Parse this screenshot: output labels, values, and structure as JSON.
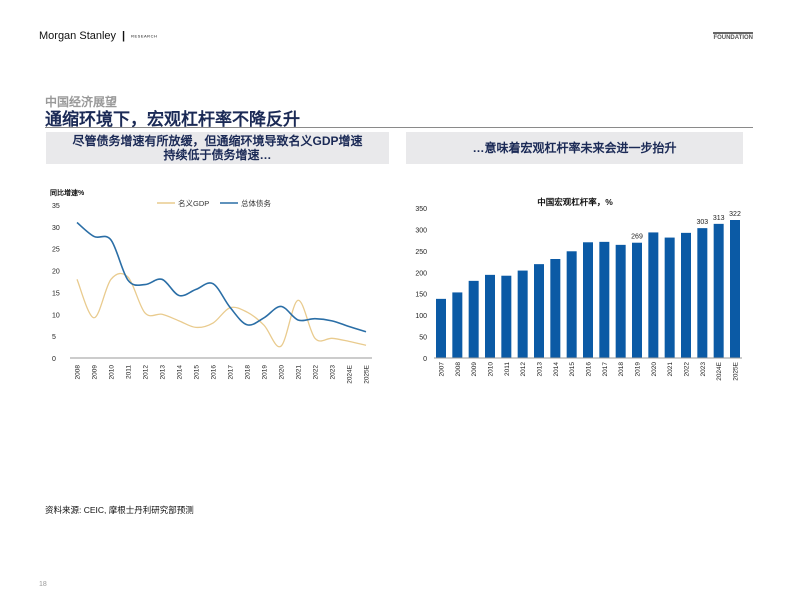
{
  "header": {
    "brand": "Morgan Stanley",
    "separator": "|",
    "brand_sub": "RESEARCH",
    "badge": "FOUNDATION"
  },
  "section_label": "中国经济展望",
  "title": "通缩环境下，宏观杠杆率不降反升",
  "callouts": [
    "尽管债务增速有所放缓，但通缩环境导致名义GDP增速持续低于债务增速…",
    "…意味着宏观杠杆率未来会进一步抬升"
  ],
  "source": "资料来源: CEIC, 摩根士丹利研究部预测",
  "page_number": "18",
  "colors": {
    "gdp": "#e9cb8e",
    "debt": "#2a6ea6",
    "bars": "#0b5aa5",
    "title": "#1b2a56"
  },
  "chart_data": [
    {
      "type": "line",
      "ylabel": "同比增速%",
      "ylim": [
        0,
        35
      ],
      "yticks": [
        0,
        5,
        10,
        15,
        20,
        25,
        30,
        35
      ],
      "legend_placement": "top-center",
      "grid": false,
      "categories": [
        "2008",
        "2009",
        "2010",
        "2011",
        "2012",
        "2013",
        "2014",
        "2015",
        "2016",
        "2017",
        "2018",
        "2019",
        "2020",
        "2021",
        "2022",
        "2023",
        "2024E",
        "2025E"
      ],
      "series": [
        {
          "name": "名义GDP",
          "color": "#e9cb8e",
          "values": [
            18,
            9.2,
            18,
            18.5,
            10.3,
            10,
            8.5,
            7,
            8,
            11.5,
            10.5,
            7.5,
            2.7,
            13.2,
            4.5,
            4.5,
            3.8,
            2.9
          ]
        },
        {
          "name": "总体债务",
          "color": "#2a6ea6",
          "values": [
            31,
            27.8,
            27,
            17.8,
            16.8,
            18,
            14.3,
            15.7,
            17,
            11.6,
            7.6,
            9.2,
            11.8,
            8.7,
            9,
            8.5,
            7.2,
            6
          ]
        }
      ]
    },
    {
      "type": "bar",
      "title": "中国宏观杠杆率，%",
      "ylim": [
        0,
        350
      ],
      "yticks": [
        0,
        50,
        100,
        150,
        200,
        250,
        300,
        350
      ],
      "grid": false,
      "categories": [
        "2007",
        "2008",
        "2009",
        "2010",
        "2011",
        "2012",
        "2013",
        "2014",
        "2015",
        "2016",
        "2017",
        "2018",
        "2019",
        "2020",
        "2021",
        "2022",
        "2023",
        "2024E",
        "2025E"
      ],
      "values": [
        138,
        153,
        180,
        194,
        192,
        204,
        219,
        231,
        249,
        270,
        271,
        264,
        269,
        293,
        281,
        292,
        303,
        313,
        322
      ],
      "data_labels": {
        "2019": "269",
        "2023": "303",
        "2024E": "313",
        "2025E": "322"
      }
    }
  ]
}
